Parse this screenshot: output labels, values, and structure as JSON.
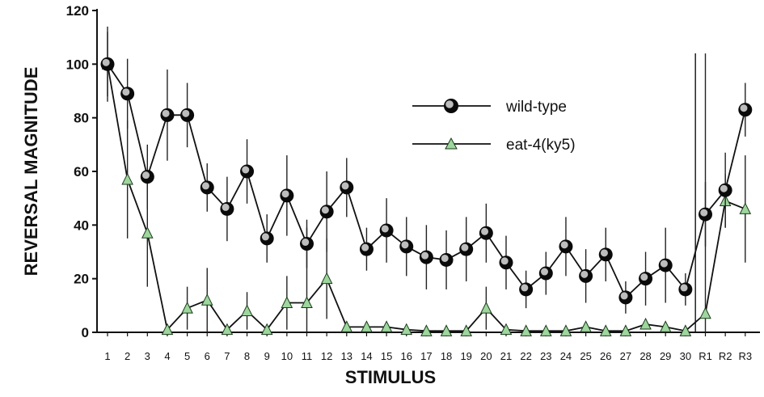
{
  "chart_data": {
    "type": "line",
    "title": "",
    "xlabel": "STIMULUS",
    "ylabel": "REVERSAL MAGNITUDE",
    "ylim": [
      0,
      120
    ],
    "yticks": [
      0,
      20,
      40,
      60,
      80,
      100,
      120
    ],
    "grid": false,
    "legend_position": "top-right",
    "categories": [
      "1",
      "2",
      "3",
      "4",
      "5",
      "6",
      "7",
      "8",
      "9",
      "10",
      "11",
      "12",
      "13",
      "14",
      "15",
      "16",
      "17",
      "18",
      "19",
      "20",
      "21",
      "22",
      "23",
      "24",
      "25",
      "26",
      "27",
      "28",
      "29",
      "30",
      "R1",
      "R2",
      "R3"
    ],
    "divider_after_category": "30",
    "series": [
      {
        "name": "wild-type",
        "marker": "circle",
        "color": "#111111",
        "values": [
          100,
          89,
          58,
          81,
          81,
          54,
          46,
          60,
          35,
          51,
          33,
          45,
          54,
          31,
          38,
          32,
          28,
          27,
          31,
          37,
          26,
          16,
          22,
          32,
          21,
          29,
          13,
          20,
          25,
          16,
          44,
          53,
          83
        ],
        "error": [
          14,
          13,
          12,
          17,
          12,
          9,
          12,
          12,
          9,
          15,
          9,
          15,
          11,
          8,
          12,
          11,
          12,
          11,
          12,
          11,
          10,
          7,
          8,
          11,
          10,
          10,
          6,
          10,
          14,
          6,
          12,
          14,
          10
        ]
      },
      {
        "name": "eat-4(ky5)",
        "marker": "triangle",
        "color": "#9ed69e",
        "values": [
          100,
          57,
          37,
          1,
          9,
          12,
          1,
          8,
          1,
          11,
          11,
          20,
          2,
          2,
          2,
          1,
          0.5,
          0.5,
          0.5,
          9,
          1,
          0.5,
          0.5,
          0.5,
          2,
          0.5,
          0.5,
          3,
          2,
          0.5,
          7,
          49,
          46
        ],
        "error": [
          12,
          22,
          20,
          1,
          8,
          12,
          1,
          7,
          1,
          10,
          28,
          15,
          1,
          1,
          1,
          1,
          0.5,
          0.5,
          0.5,
          8,
          1,
          0.5,
          0.5,
          0.5,
          1,
          0.5,
          0.5,
          1,
          1,
          0.5,
          97,
          10,
          20
        ]
      }
    ]
  }
}
